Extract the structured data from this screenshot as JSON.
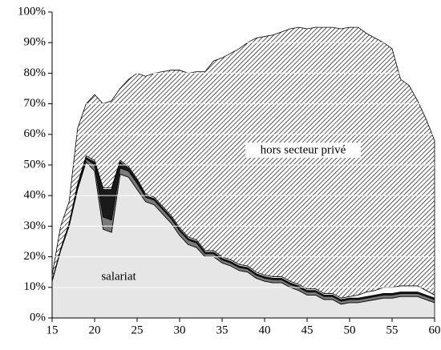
{
  "chart_data": {
    "type": "stacked_area",
    "x": [
      15,
      16,
      17,
      18,
      19,
      20,
      21,
      22,
      23,
      24,
      25,
      26,
      27,
      28,
      29,
      30,
      31,
      32,
      33,
      34,
      35,
      36,
      37,
      38,
      39,
      40,
      41,
      42,
      43,
      44,
      45,
      46,
      47,
      48,
      49,
      50,
      51,
      52,
      53,
      54,
      55,
      56,
      57,
      58,
      59,
      60
    ],
    "series": [
      {
        "name": "salariat",
        "color": "#e6e6e6",
        "values": [
          12,
          22,
          30,
          42,
          51,
          48,
          29,
          28,
          47,
          46,
          42,
          38,
          37,
          34,
          31,
          27,
          24,
          23,
          20,
          20,
          18,
          17,
          15.5,
          15,
          13,
          12,
          11.5,
          11.5,
          10,
          9,
          7.5,
          7.5,
          6,
          6,
          4.5,
          5,
          5,
          5.5,
          6,
          6.5,
          6.5,
          7,
          7,
          7,
          6,
          5
        ]
      },
      {
        "color": "#7a7a7a",
        "values": [
          0.3,
          0.5,
          0.5,
          0.8,
          1,
          2,
          4,
          4,
          2,
          2,
          2,
          1.5,
          1.5,
          1.5,
          1.5,
          1.5,
          1.5,
          1.5,
          1,
          1,
          1,
          1,
          1,
          1,
          1,
          1,
          1,
          1,
          1,
          1,
          1,
          1,
          1,
          1,
          1,
          1,
          1,
          1,
          1,
          1,
          1,
          1,
          1,
          1,
          1,
          1
        ]
      },
      {
        "color": "#1a1a1a",
        "values": [
          0,
          0,
          0.5,
          0.5,
          0.5,
          1,
          9,
          10,
          2,
          1,
          1,
          0.5,
          0.5,
          0.5,
          0.5,
          0.5,
          0.5,
          0.5,
          0.5,
          0.5,
          0.5,
          0.5,
          0.5,
          0.5,
          0.5,
          0.5,
          0.5,
          0.5,
          0.5,
          0.5,
          0.5,
          0.5,
          0.5,
          0.5,
          0.5,
          0.5,
          0.5,
          0.5,
          0.5,
          0.5,
          0.5,
          0.5,
          0.5,
          0.5,
          0.5,
          0.5
        ]
      },
      {
        "color": "#ffffff",
        "values": [
          0,
          0,
          0,
          0.5,
          0.5,
          0.5,
          0.5,
          0.5,
          0.5,
          0.5,
          0.5,
          0.5,
          0.5,
          0.5,
          0.5,
          0.5,
          0.5,
          0.5,
          0.5,
          0.5,
          0.5,
          0.5,
          0.5,
          0.5,
          0.5,
          0.5,
          0.5,
          0.5,
          0.5,
          0.5,
          0.5,
          0.5,
          0.5,
          0.5,
          0.5,
          0.5,
          1,
          1.5,
          1.5,
          2,
          2,
          2,
          2,
          2,
          1.5,
          1
        ]
      },
      {
        "name": "hors secteur privé",
        "color": "hatch",
        "values": [
          1.7,
          7.5,
          7,
          18.2,
          17,
          21.5,
          27.5,
          28.5,
          23.5,
          28.5,
          34.5,
          38.5,
          40.5,
          44,
          47.5,
          51.5,
          53.5,
          55,
          58.5,
          62,
          65,
          67.5,
          70.5,
          73,
          76.5,
          78,
          79,
          80,
          82.5,
          84,
          85,
          85.5,
          87,
          87,
          88,
          88,
          87.5,
          84.5,
          82.5,
          80,
          78,
          67.5,
          65.5,
          60.5,
          56,
          50.5
        ]
      }
    ],
    "xlim": [
      15,
      60
    ],
    "xticks": [
      15,
      20,
      25,
      30,
      35,
      40,
      45,
      50,
      55,
      60
    ],
    "ylim": [
      0,
      100
    ],
    "yticks": [
      {
        "value": 0,
        "label": "0%"
      },
      {
        "value": 10,
        "label": "10%"
      },
      {
        "value": 20,
        "label": "20%"
      },
      {
        "value": 30,
        "label": "30%"
      },
      {
        "value": 40,
        "label": "40%"
      },
      {
        "value": 50,
        "label": "50%"
      },
      {
        "value": 60,
        "label": "60%"
      },
      {
        "value": 70,
        "label": "70%"
      },
      {
        "value": 80,
        "label": "80%"
      },
      {
        "value": 90,
        "label": "90%"
      },
      {
        "value": 100,
        "label": "100%"
      }
    ],
    "grid": true
  }
}
